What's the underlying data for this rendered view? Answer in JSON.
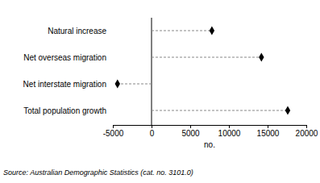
{
  "chart_data": {
    "type": "dot",
    "orientation": "horizontal",
    "categories": [
      "Natural increase",
      "Net overseas migration",
      "Net interstate migration",
      "Total population growth"
    ],
    "values": [
      7800,
      14200,
      -4400,
      17600
    ],
    "color": "#000000",
    "marker": "diamond",
    "line_style": "dashed",
    "xlim": [
      -5000,
      20000
    ],
    "xticks": [
      -5000,
      0,
      5000,
      10000,
      15000,
      20000
    ],
    "x_label": "no.",
    "source": "Source: Australian Demographic Statistics (cat. no. 3101.0)"
  }
}
